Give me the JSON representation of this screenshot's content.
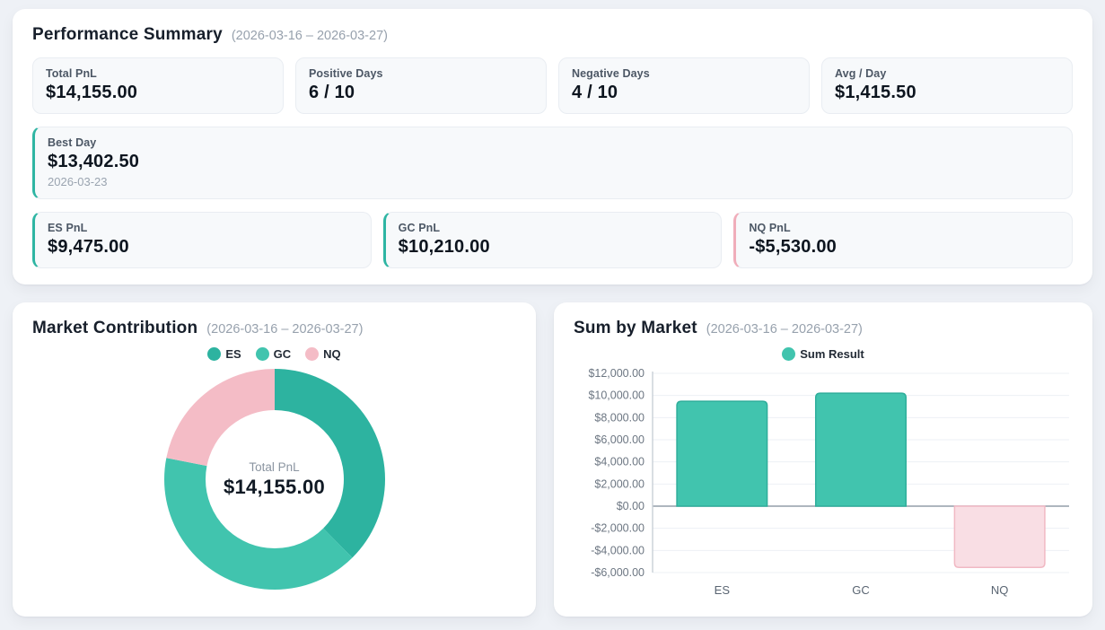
{
  "page": {
    "background": "#eef1f6",
    "panel_background": "#ffffff"
  },
  "colors": {
    "teal": "#2db3a0",
    "teal_light": "#41c4ae",
    "pink": "#f4bcc6",
    "pink_fill": "#f9dee4",
    "positive_accent": "#2eb5a3",
    "negative_accent": "#f0adba"
  },
  "performance_summary": {
    "title": "Performance Summary",
    "date_range": "(2026-03-16 – 2026-03-27)",
    "stats": [
      {
        "label": "Total PnL",
        "value": "$14,155.00"
      },
      {
        "label": "Positive Days",
        "value": "6 / 10"
      },
      {
        "label": "Negative Days",
        "value": "4 / 10"
      },
      {
        "label": "Avg / Day",
        "value": "$1,415.50"
      }
    ],
    "best_day": {
      "label": "Best Day",
      "value": "$13,402.50",
      "date": "2026-03-23",
      "accent": "#2eb5a3"
    },
    "market_pnl": [
      {
        "label": "ES PnL",
        "value": "$9,475.00",
        "accent": "#2eb5a3"
      },
      {
        "label": "GC PnL",
        "value": "$10,210.00",
        "accent": "#2eb5a3"
      },
      {
        "label": "NQ PnL",
        "value": "-$5,530.00",
        "accent": "#f0adba"
      }
    ]
  },
  "market_contribution": {
    "title": "Market Contribution",
    "date_range": "(2026-03-16 – 2026-03-27)",
    "chart_data": {
      "type": "pie",
      "subtype": "donut",
      "labels": [
        "ES",
        "GC",
        "NQ"
      ],
      "values": [
        9475,
        10210,
        5530
      ],
      "colors": [
        "#2db3a0",
        "#41c4ae",
        "#f4bcc6"
      ],
      "center_label": "Total PnL",
      "center_value": "$14,155.00",
      "legend_position": "top",
      "start_angle": "top",
      "direction": "clockwise"
    }
  },
  "sum_by_market": {
    "title": "Sum by Market",
    "date_range": "(2026-03-16 – 2026-03-27)",
    "chart_data": {
      "type": "bar",
      "categories": [
        "ES",
        "GC",
        "NQ"
      ],
      "series": [
        {
          "name": "Sum Result",
          "values": [
            9475,
            10210,
            -5530
          ]
        }
      ],
      "ylim": [
        -6000,
        12000
      ],
      "y_ticks": [
        12000,
        10000,
        8000,
        6000,
        4000,
        2000,
        0,
        -2000,
        -4000,
        -6000
      ],
      "y_tick_labels": [
        "$12,000.00",
        "$10,000.00",
        "$8,000.00",
        "$6,000.00",
        "$4,000.00",
        "$2,000.00",
        "$0.00",
        "-$2,000.00",
        "-$4,000.00",
        "-$6,000.00"
      ],
      "grid": true,
      "legend_position": "top",
      "legend": [
        {
          "label": "Sum Result",
          "color": "#41c4ae"
        }
      ],
      "bar_fills": [
        "#41c4ae",
        "#41c4ae",
        "#f9dee4"
      ],
      "bar_strokes": [
        "#2fae9b",
        "#2fae9b",
        "#f1b9c4"
      ]
    }
  }
}
